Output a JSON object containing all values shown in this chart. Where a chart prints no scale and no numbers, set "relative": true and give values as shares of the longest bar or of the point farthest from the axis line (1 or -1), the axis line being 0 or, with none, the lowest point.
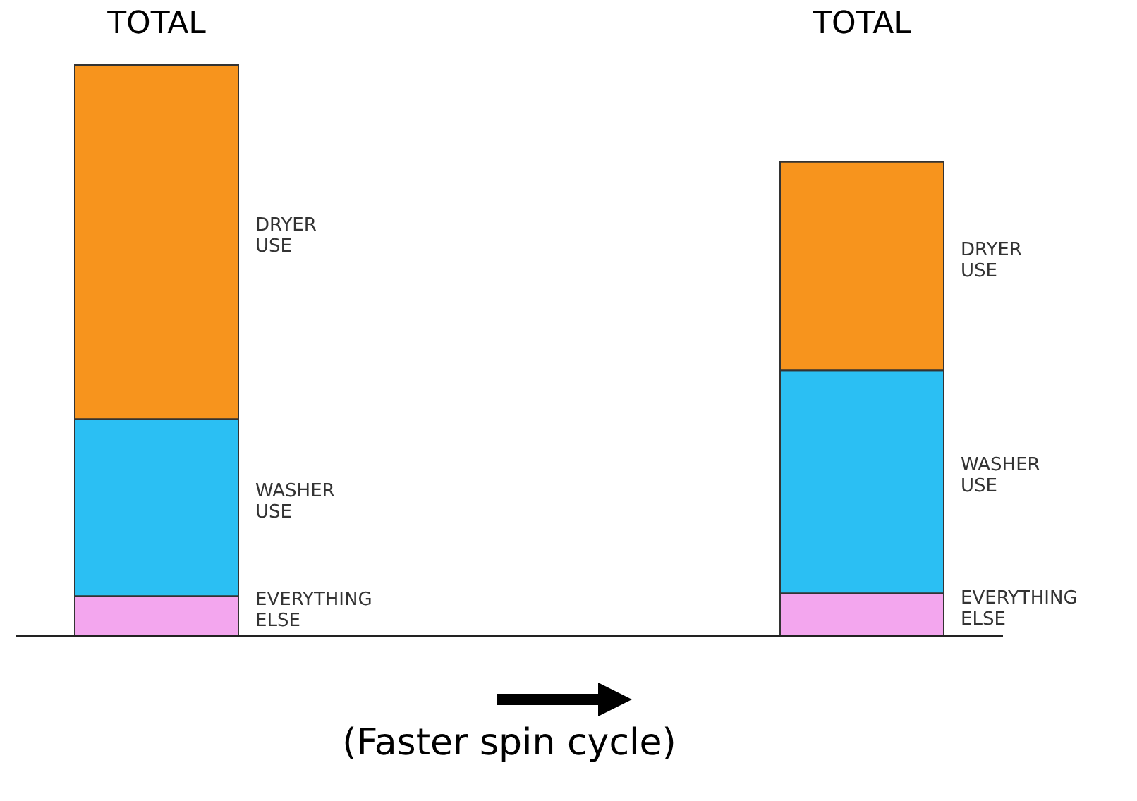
{
  "chart_data": {
    "type": "bar",
    "stacked": true,
    "relative": true,
    "categories": [
      "TOTAL",
      "TOTAL"
    ],
    "series": [
      {
        "name": "EVERYTHING ELSE",
        "color": "#f3a6ee",
        "values": [
          0.07,
          0.075
        ]
      },
      {
        "name": "WASHER USE",
        "color": "#2bbff3",
        "values": [
          0.31,
          0.39
        ]
      },
      {
        "name": "DRYER USE",
        "color": "#f7941d",
        "values": [
          0.62,
          0.365
        ]
      }
    ],
    "annotations": [
      "(Faster spin cycle)"
    ]
  }
}
